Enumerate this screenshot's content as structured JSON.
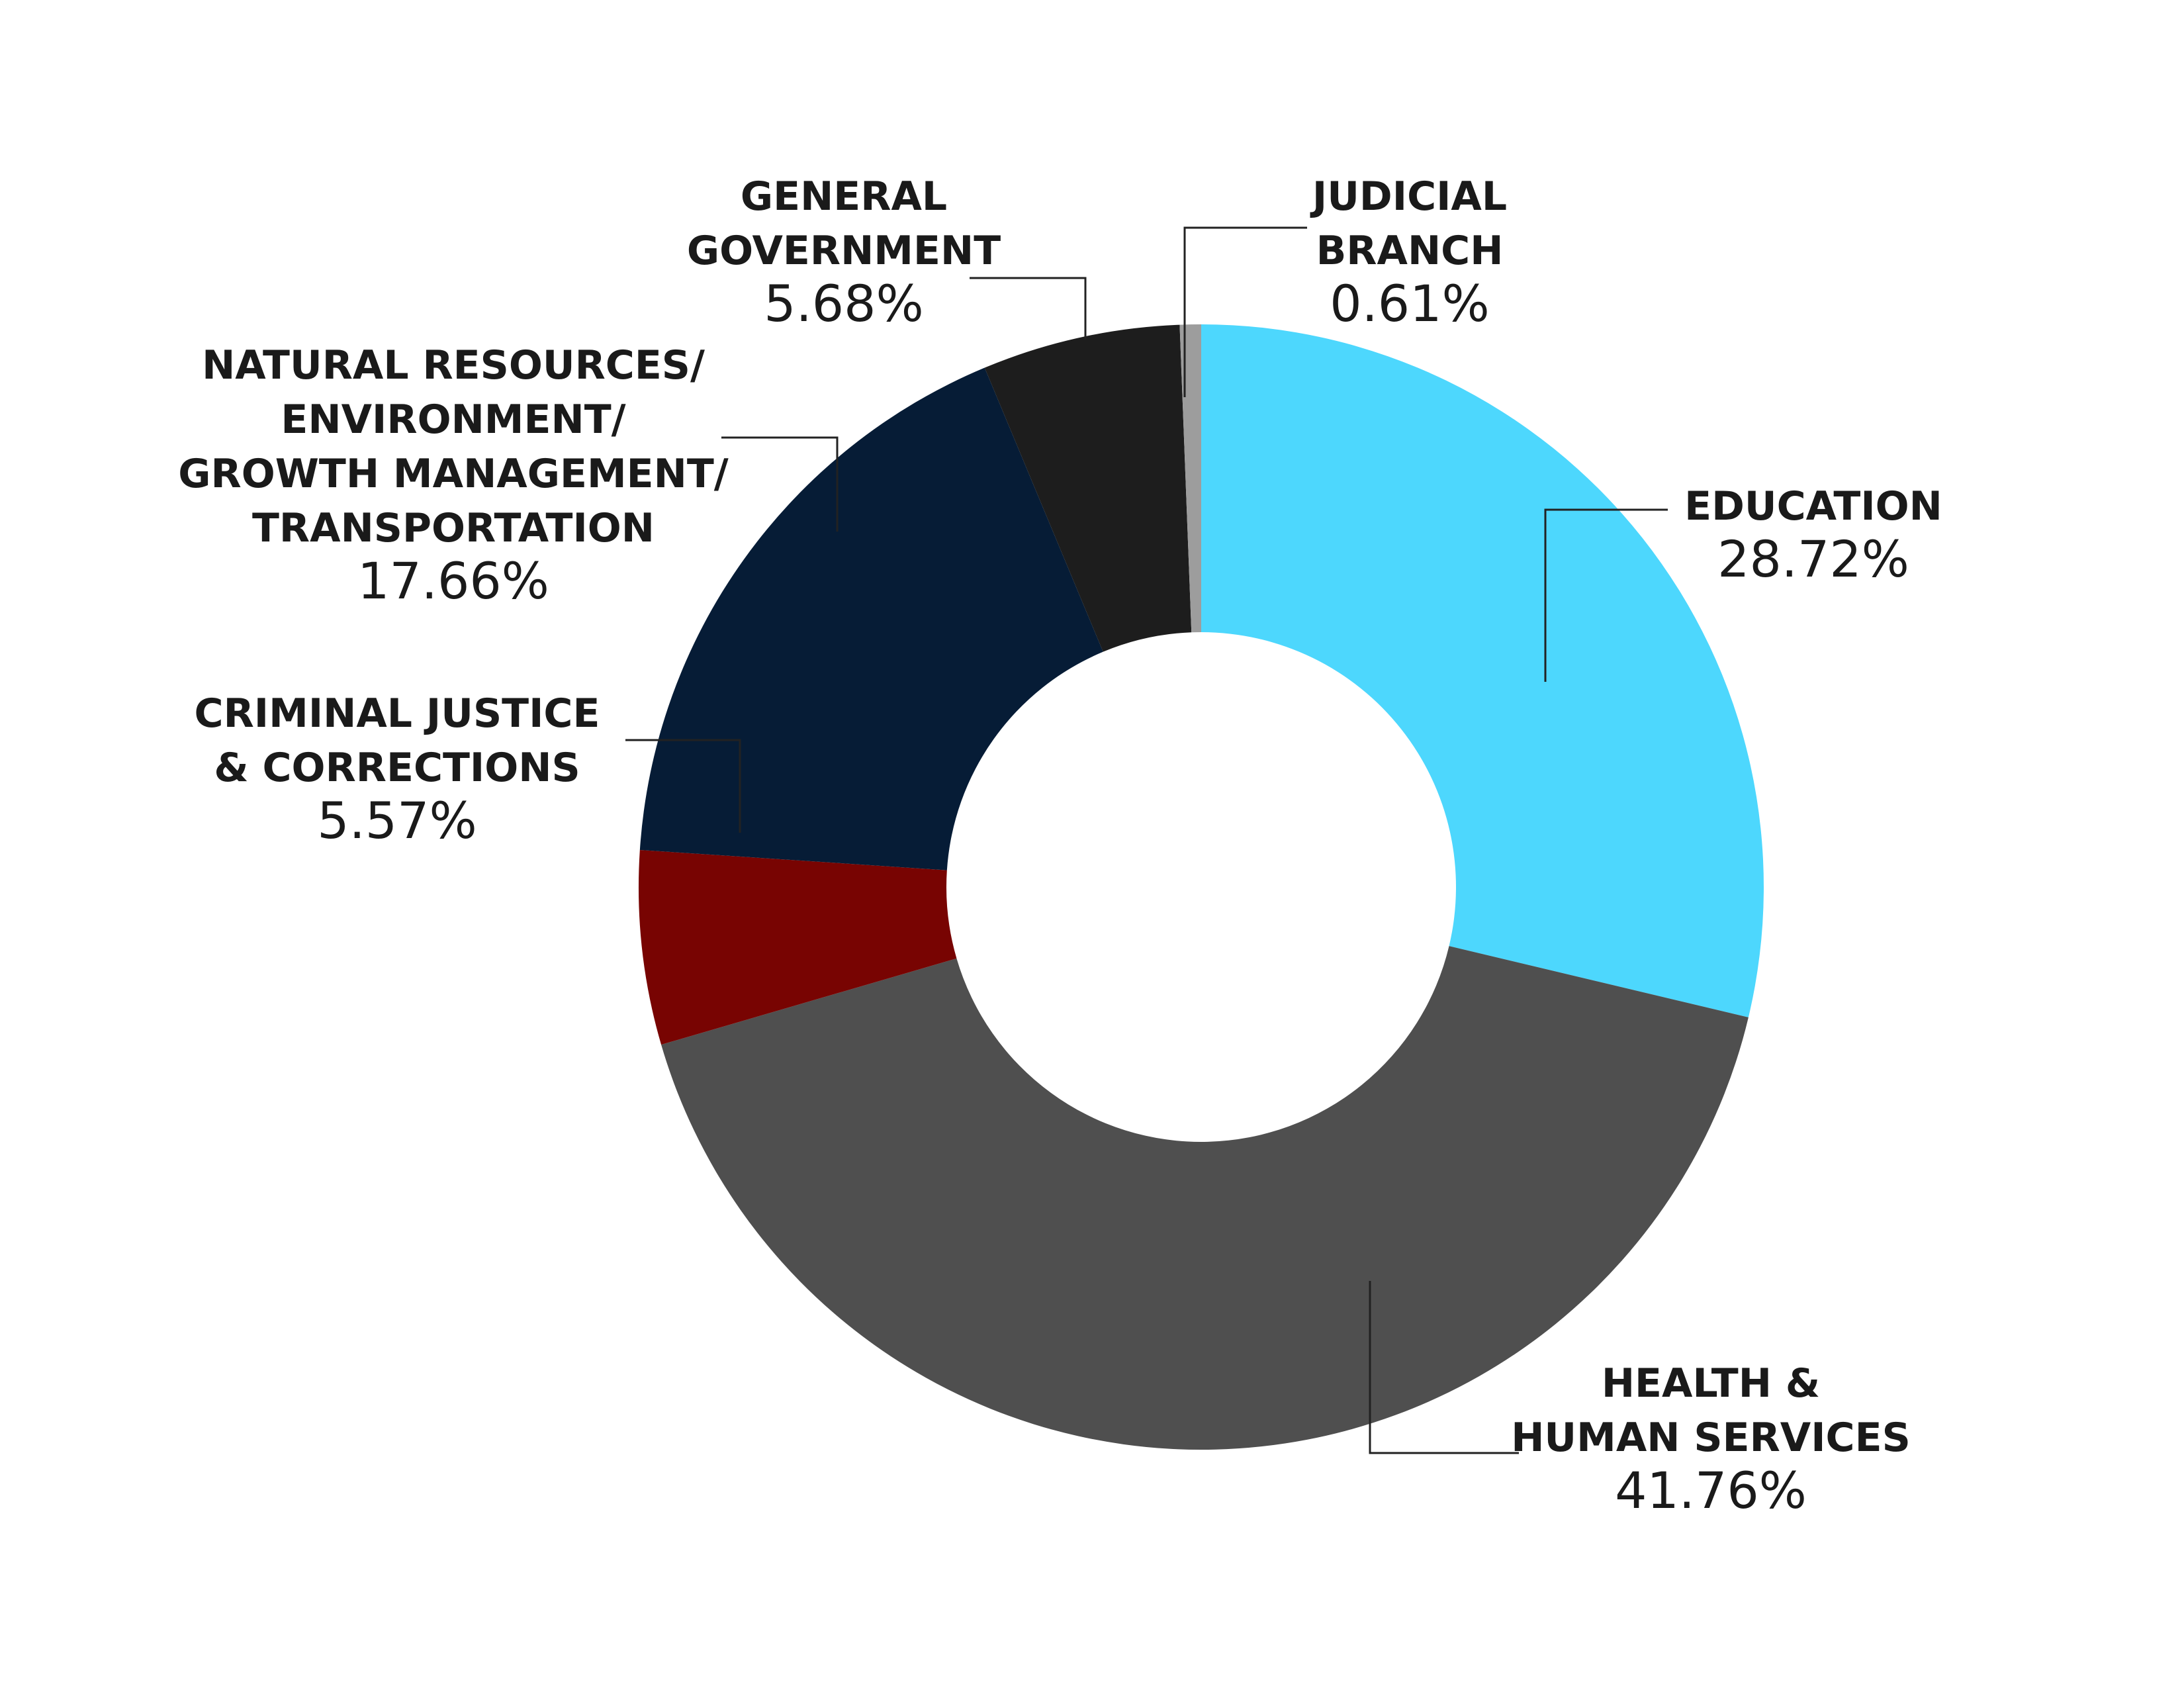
{
  "chart_data": {
    "type": "pie",
    "donut": true,
    "title": "",
    "start_angle_deg": 0,
    "direction": "clockwise",
    "slices": [
      {
        "label_lines": [
          "EDUCATION"
        ],
        "value_label": "28.72%",
        "value": 28.72,
        "color": "#4dd7fd"
      },
      {
        "label_lines": [
          "HEALTH &",
          "HUMAN SERVICES"
        ],
        "value_label": "41.76%",
        "value": 41.76,
        "color": "#4f4f4f"
      },
      {
        "label_lines": [
          "CRIMINAL JUSTICE",
          "& CORRECTIONS"
        ],
        "value_label": "5.57%",
        "value": 5.57,
        "color": "#780402"
      },
      {
        "label_lines": [
          "NATURAL RESOURCES/",
          "ENVIRONMENT/",
          "GROWTH MANAGEMENT/",
          "TRANSPORTATION"
        ],
        "value_label": "17.66%",
        "value": 17.66,
        "color": "#061c36"
      },
      {
        "label_lines": [
          "GENERAL",
          "GOVERNMENT"
        ],
        "value_label": "5.68%",
        "value": 5.68,
        "color": "#1d1d1d"
      },
      {
        "label_lines": [
          "JUDICIAL",
          "BRANCH"
        ],
        "value_label": "0.61%",
        "value": 0.61,
        "color": "#9d9d9d"
      }
    ]
  }
}
